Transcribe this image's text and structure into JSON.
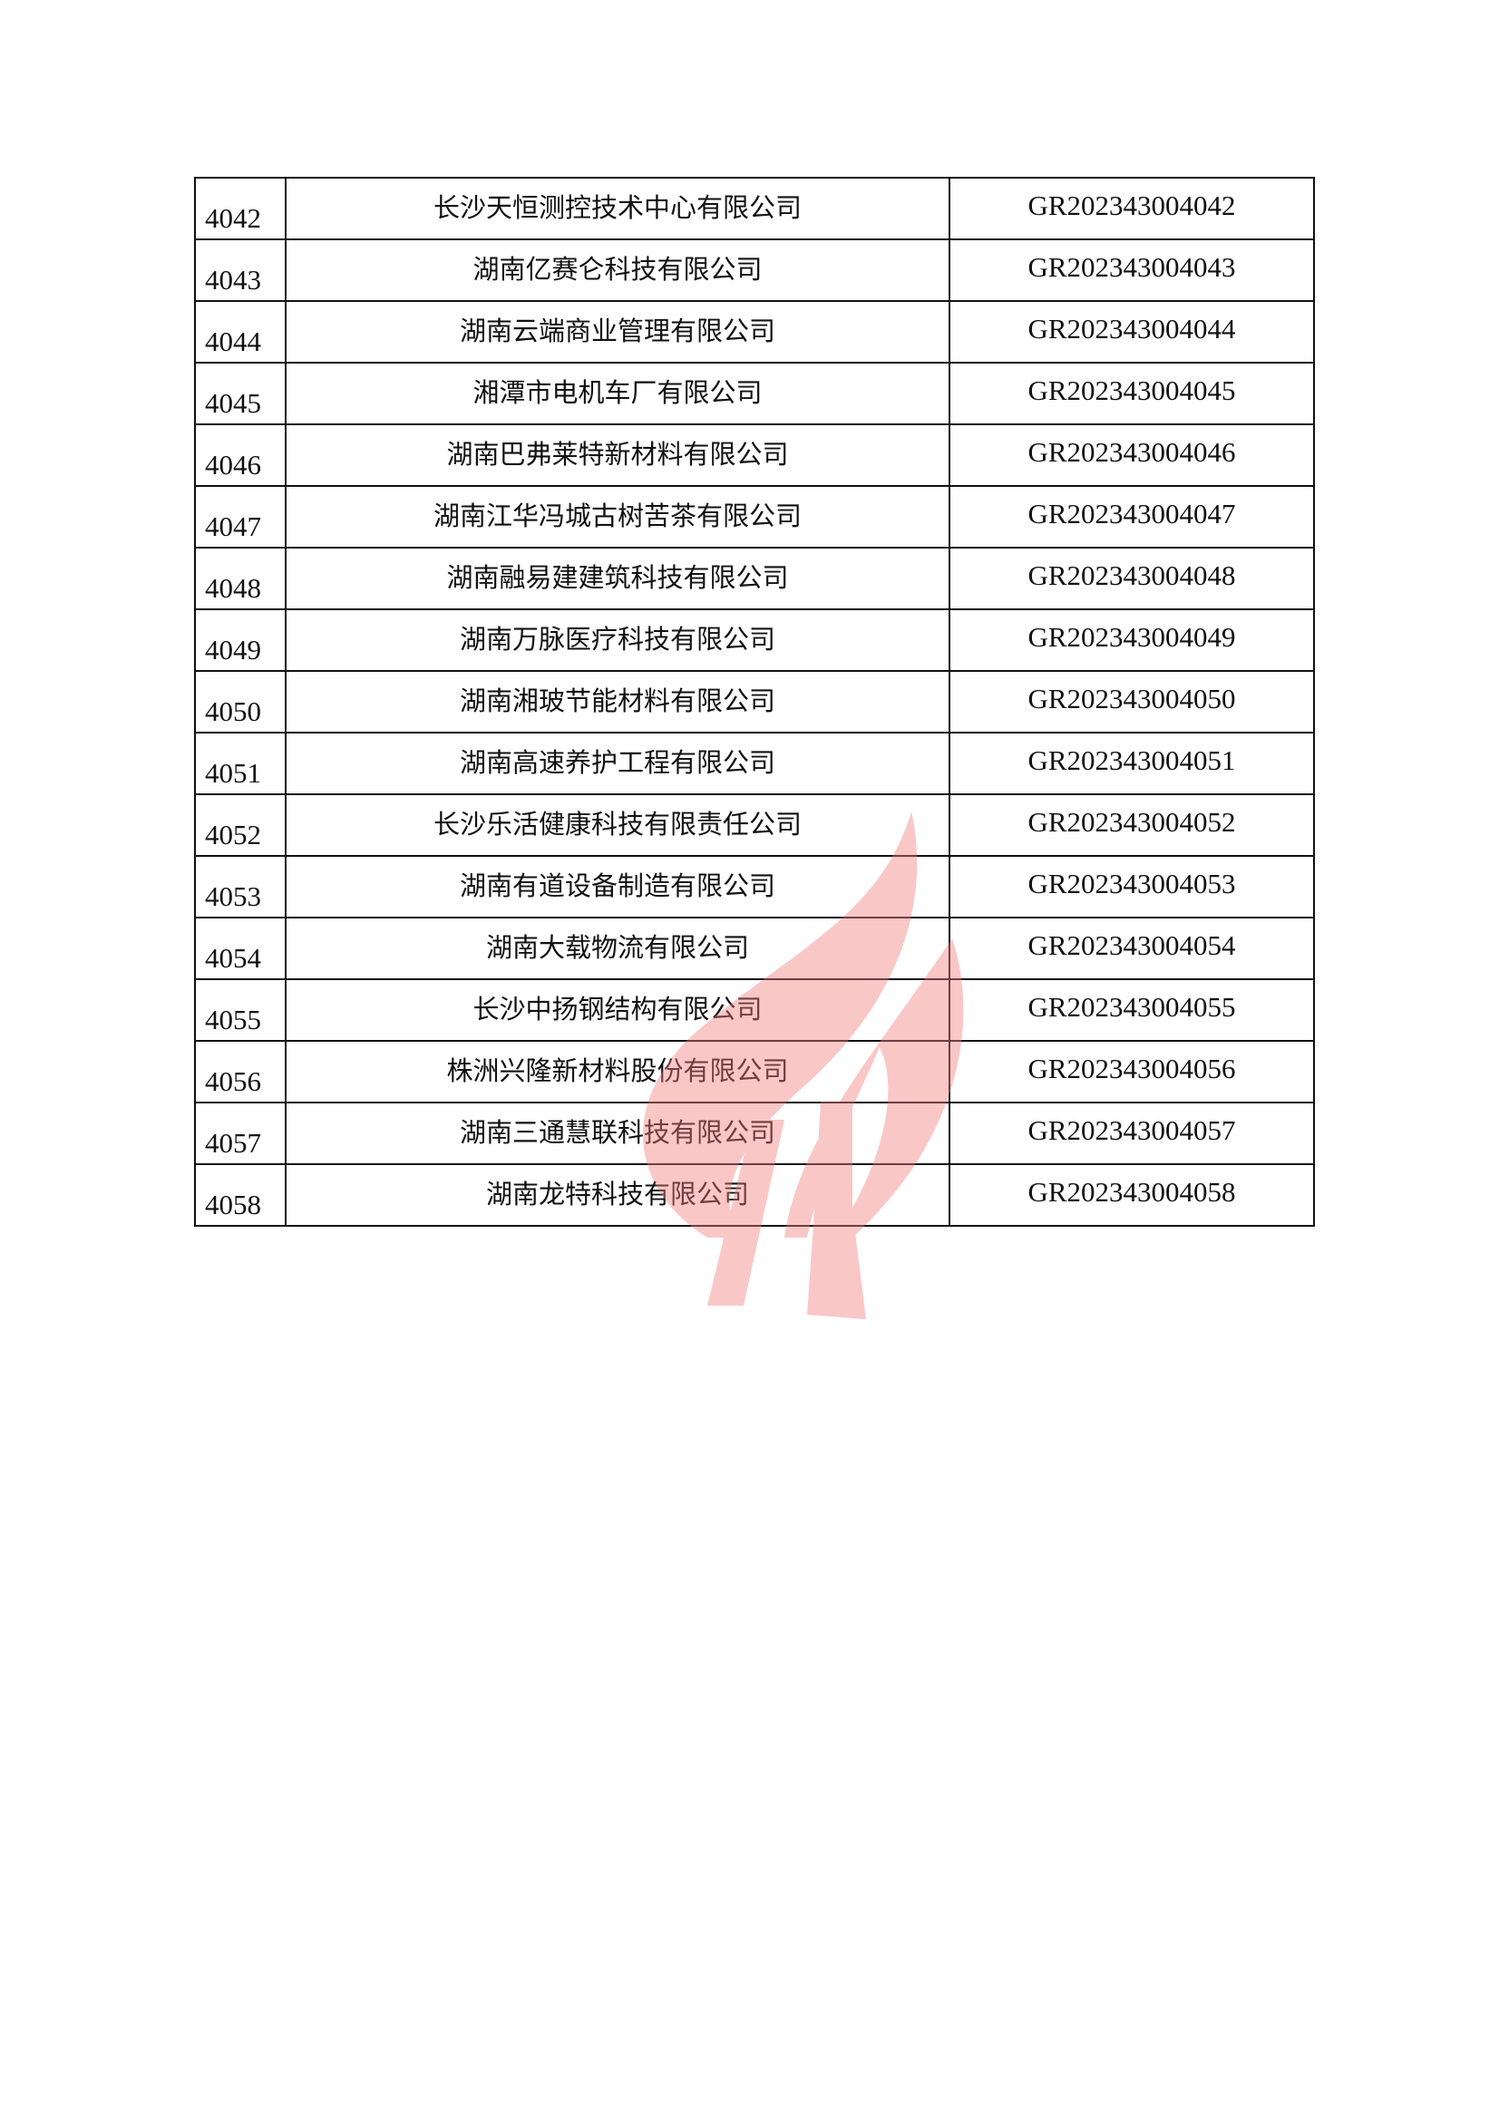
{
  "table": {
    "rows": [
      {
        "no": "4042",
        "name": "长沙天恒测控技术中心有限公司",
        "code": "GR202343004042"
      },
      {
        "no": "4043",
        "name": "湖南亿赛仑科技有限公司",
        "code": "GR202343004043"
      },
      {
        "no": "4044",
        "name": "湖南云端商业管理有限公司",
        "code": "GR202343004044"
      },
      {
        "no": "4045",
        "name": "湘潭市电机车厂有限公司",
        "code": "GR202343004045"
      },
      {
        "no": "4046",
        "name": "湖南巴弗莱特新材料有限公司",
        "code": "GR202343004046"
      },
      {
        "no": "4047",
        "name": "湖南江华冯城古树苦茶有限公司",
        "code": "GR202343004047"
      },
      {
        "no": "4048",
        "name": "湖南融易建建筑科技有限公司",
        "code": "GR202343004048"
      },
      {
        "no": "4049",
        "name": "湖南万脉医疗科技有限公司",
        "code": "GR202343004049"
      },
      {
        "no": "4050",
        "name": "湖南湘玻节能材料有限公司",
        "code": "GR202343004050"
      },
      {
        "no": "4051",
        "name": "湖南高速养护工程有限公司",
        "code": "GR202343004051"
      },
      {
        "no": "4052",
        "name": "长沙乐活健康科技有限责任公司",
        "code": "GR202343004052"
      },
      {
        "no": "4053",
        "name": "湖南有道设备制造有限公司",
        "code": "GR202343004053"
      },
      {
        "no": "4054",
        "name": "湖南大载物流有限公司",
        "code": "GR202343004054"
      },
      {
        "no": "4055",
        "name": "长沙中扬钢结构有限公司",
        "code": "GR202343004055"
      },
      {
        "no": "4056",
        "name": "株洲兴隆新材料股份有限公司",
        "code": "GR202343004056"
      },
      {
        "no": "4057",
        "name": "湖南三通慧联科技有限公司",
        "code": "GR202343004057"
      },
      {
        "no": "4058",
        "name": "湖南龙特科技有限公司",
        "code": "GR202343004058"
      }
    ]
  },
  "watermark": {
    "icon": "flame-logo-watermark",
    "color": "#f47c7c"
  }
}
